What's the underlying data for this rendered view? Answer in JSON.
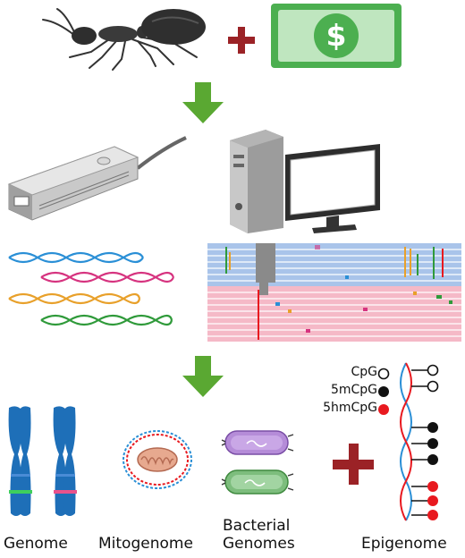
{
  "currency_symbol": "$",
  "legend": {
    "items": [
      {
        "label": "CpG",
        "fill": "#ffffff"
      },
      {
        "label": "5mCpG",
        "fill": "#111111"
      },
      {
        "label": "5hmCpG",
        "fill": "#e8191f"
      }
    ]
  },
  "captions": {
    "genome": "Genome",
    "mitogenome": "Mitogenome",
    "bacterial_line1": "Bacterial",
    "bacterial_line2": "Genomes",
    "epigenome": "Epigenome"
  },
  "colors": {
    "arrow_green": "#5aa832",
    "plus_red": "#9b2226",
    "money_green": "#4caf50",
    "chromosome_blue": "#1e6fb8",
    "dna_colors": [
      "#2a8fd6",
      "#d6337f",
      "#e8a02a",
      "#2f9a3a"
    ],
    "read_blue": "#a9c4ea",
    "read_pink": "#f5b9c7"
  },
  "icons": [
    "ant-icon",
    "money-icon",
    "arrow-down-icon",
    "sequencer-icon",
    "computer-icon",
    "dna-helix-icon",
    "chromosome-icon",
    "mitochondrion-icon",
    "bacterium-icon",
    "methylation-dna-icon"
  ]
}
